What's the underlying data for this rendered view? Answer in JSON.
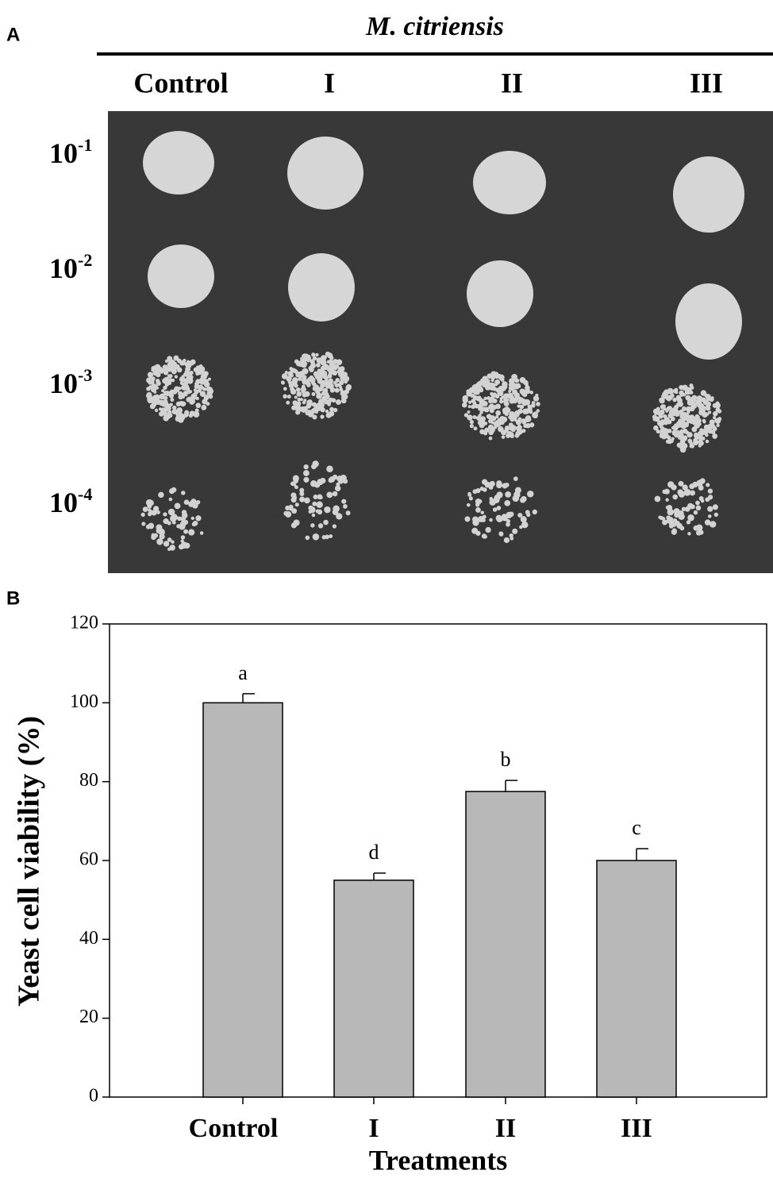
{
  "panel_labels": [
    "A",
    "B"
  ],
  "plate": {
    "title": "M. citriensis",
    "columns": [
      "Control",
      "I",
      "II",
      "III"
    ],
    "rows": [
      {
        "base": "10",
        "exponent": "-1"
      },
      {
        "base": "10",
        "exponent": "-2"
      },
      {
        "base": "10",
        "exponent": "-3"
      },
      {
        "base": "10",
        "exponent": "-4"
      }
    ]
  },
  "chart_data": {
    "type": "bar",
    "ylabel": "Yeast cell viability (%)",
    "xlabel": "Treatments",
    "categories": [
      "Control",
      "I",
      "II",
      "III"
    ],
    "values": [
      100,
      55,
      77.5,
      60
    ],
    "errors": [
      2.3,
      1.8,
      2.8,
      3
    ],
    "annotations": [
      "a",
      "d",
      "b",
      "c"
    ],
    "color": "#b8b8b8",
    "ylim": [
      0,
      120
    ],
    "yticks": [
      0,
      20,
      40,
      60,
      80,
      100,
      120
    ]
  }
}
